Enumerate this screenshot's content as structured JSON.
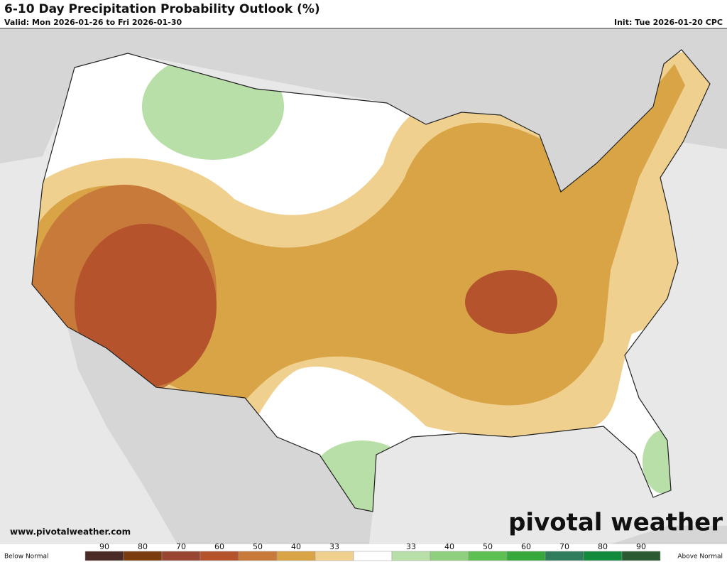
{
  "header": {
    "title": "6-10 Day Precipitation Probability Outlook (%)",
    "valid": "Valid: Mon 2026-01-26 to Fri 2026-01-30",
    "init": "Init: Tue 2026-01-20 CPC"
  },
  "footer": {
    "website": "www.pivotalweather.com",
    "logo": "pivotal weather"
  },
  "legend": {
    "below_label": "Below Normal",
    "above_label": "Above Normal",
    "items": [
      {
        "label": "90",
        "color": "#4b2b25"
      },
      {
        "label": "80",
        "color": "#7b3d10"
      },
      {
        "label": "70",
        "color": "#984632"
      },
      {
        "label": "60",
        "color": "#b4532c"
      },
      {
        "label": "50",
        "color": "#c87a3a"
      },
      {
        "label": "40",
        "color": "#d9a446"
      },
      {
        "label": "33",
        "color": "#f0d08f"
      },
      {
        "color": "#ffffff"
      },
      {
        "label": "33",
        "color": "#b9dfa8"
      },
      {
        "label": "40",
        "color": "#8fd07e"
      },
      {
        "label": "50",
        "color": "#5ebf52"
      },
      {
        "label": "60",
        "color": "#37a83b"
      },
      {
        "label": "70",
        "color": "#2f7d5c"
      },
      {
        "label": "80",
        "color": "#128a3c"
      },
      {
        "label": "90",
        "color": "#2b5a33"
      }
    ]
  }
}
